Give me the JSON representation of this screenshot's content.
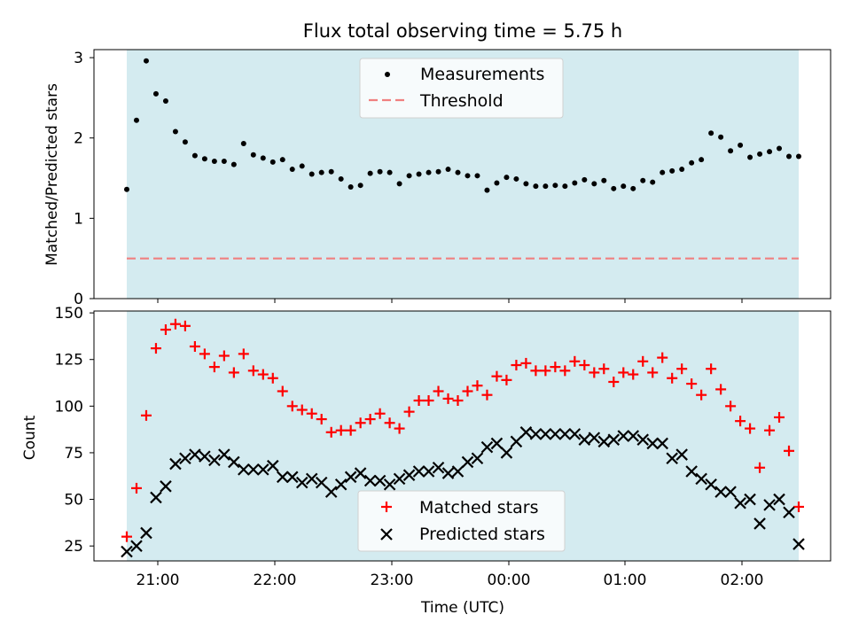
{
  "chart_data": [
    {
      "type": "scatter",
      "title": "Flux total observing time = 5.75 h",
      "ylabel": "Matched/Predicted stars",
      "xlabel": "",
      "ylim": [
        0,
        3.1
      ],
      "yticks": [
        0,
        1,
        2,
        3
      ],
      "shaded_color": "#d4ebf0",
      "legend_position": "upper center",
      "series": [
        {
          "name": "Measurements",
          "marker": "dot",
          "color": "#000000",
          "values": [
            1.36,
            2.22,
            2.96,
            2.55,
            2.46,
            2.08,
            1.95,
            1.78,
            1.74,
            1.71,
            1.71,
            1.67,
            1.93,
            1.79,
            1.75,
            1.7,
            1.73,
            1.61,
            1.65,
            1.55,
            1.57,
            1.58,
            1.49,
            1.39,
            1.41,
            1.56,
            1.58,
            1.57,
            1.43,
            1.53,
            1.55,
            1.57,
            1.58,
            1.61,
            1.57,
            1.53,
            1.53,
            1.35,
            1.44,
            1.51,
            1.49,
            1.43,
            1.4,
            1.4,
            1.41,
            1.4,
            1.44,
            1.48,
            1.43,
            1.47,
            1.37,
            1.4,
            1.37,
            1.47,
            1.45,
            1.57,
            1.59,
            1.61,
            1.69,
            1.73,
            2.06,
            2.01,
            1.84,
            1.91,
            1.76,
            1.8,
            1.83,
            1.87,
            1.77,
            1.77
          ]
        },
        {
          "name": "Threshold",
          "style": "dashed",
          "color": "#f08080",
          "value": 0.5
        }
      ]
    },
    {
      "type": "scatter",
      "xlabel": "Time (UTC)",
      "ylabel": "Count",
      "ylim": [
        17,
        151
      ],
      "yticks": [
        25,
        50,
        75,
        100,
        125,
        150
      ],
      "xtick_labels": [
        "21:00",
        "22:00",
        "23:00",
        "00:00",
        "01:00",
        "02:00"
      ],
      "shaded_color": "#d4ebf0",
      "legend_position": "lower center",
      "series": [
        {
          "name": "Matched stars",
          "marker": "plus",
          "color": "#ff0000",
          "values": [
            30,
            56,
            95,
            131,
            141,
            144,
            143,
            132,
            128,
            121,
            127,
            118,
            128,
            119,
            117,
            115,
            108,
            100,
            98,
            96,
            93,
            86,
            87,
            87,
            91,
            93,
            96,
            91,
            88,
            97,
            103,
            103,
            108,
            104,
            103,
            108,
            111,
            106,
            116,
            114,
            122,
            123,
            119,
            119,
            121,
            119,
            124,
            122,
            118,
            120,
            113,
            118,
            117,
            124,
            118,
            126,
            115,
            120,
            112,
            106,
            120,
            109,
            100,
            92,
            88,
            67,
            87,
            94,
            76,
            46
          ]
        },
        {
          "name": "Predicted stars",
          "marker": "x",
          "color": "#000000",
          "values": [
            22,
            25,
            32,
            51,
            57,
            69,
            72,
            74,
            73,
            71,
            74,
            70,
            66,
            66,
            66,
            68,
            62,
            62,
            59,
            61,
            59,
            54,
            58,
            62,
            64,
            60,
            60,
            58,
            61,
            63,
            65,
            65,
            67,
            64,
            65,
            70,
            72,
            78,
            80,
            75,
            81,
            86,
            85,
            85,
            85,
            85,
            85,
            82,
            83,
            81,
            82,
            84,
            84,
            82,
            80,
            80,
            72,
            74,
            65,
            61,
            58,
            54,
            54,
            48,
            50,
            37,
            47,
            50,
            43,
            26
          ]
        }
      ]
    }
  ]
}
